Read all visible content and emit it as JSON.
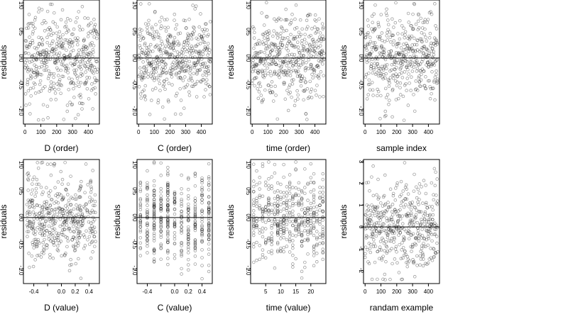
{
  "figure": {
    "ylabel": "residuals"
  },
  "chart_data": [
    {
      "type": "scatter",
      "xlabel": "D (order)",
      "ylabel": "residuals",
      "xlim": [
        -10,
        470
      ],
      "ylim": [
        -1.25,
        1.1
      ],
      "xticks": [
        "0",
        "100",
        "200",
        "300",
        "400"
      ],
      "xtick_values": [
        0,
        100,
        200,
        300,
        400
      ],
      "yticks": [
        "-1.0",
        "-0.5",
        "0.0",
        "0.5",
        "1.0"
      ],
      "ytick_values": [
        -1.0,
        -0.5,
        0.0,
        0.5,
        1.0
      ],
      "hline": 0,
      "n": 460,
      "x_kind": "index",
      "y_spread": 0.42
    },
    {
      "type": "scatter",
      "xlabel": "C (order)",
      "ylabel": "residuals",
      "xlim": [
        -10,
        470
      ],
      "ylim": [
        -1.25,
        1.1
      ],
      "xticks": [
        "0",
        "100",
        "200",
        "300",
        "400"
      ],
      "xtick_values": [
        0,
        100,
        200,
        300,
        400
      ],
      "yticks": [
        "-1.0",
        "-0.5",
        "0.0",
        "0.5",
        "1.0"
      ],
      "ytick_values": [
        -1.0,
        -0.5,
        0.0,
        0.5,
        1.0
      ],
      "hline": 0,
      "n": 460,
      "x_kind": "index",
      "y_spread": 0.42
    },
    {
      "type": "scatter",
      "xlabel": "time (order)",
      "ylabel": "residuals",
      "xlim": [
        -10,
        470
      ],
      "ylim": [
        -1.25,
        1.1
      ],
      "xticks": [
        "0",
        "100",
        "200",
        "300",
        "400"
      ],
      "xtick_values": [
        0,
        100,
        200,
        300,
        400
      ],
      "yticks": [
        "-1.0",
        "-0.5",
        "0.0",
        "0.5",
        "1.0"
      ],
      "ytick_values": [
        -1.0,
        -0.5,
        0.0,
        0.5,
        1.0
      ],
      "hline": 0,
      "n": 460,
      "x_kind": "index",
      "y_spread": 0.42
    },
    {
      "type": "scatter",
      "xlabel": "sample index",
      "ylabel": "residuals",
      "xlim": [
        -10,
        470
      ],
      "ylim": [
        -1.25,
        1.1
      ],
      "xticks": [
        "0",
        "100",
        "200",
        "300",
        "400"
      ],
      "xtick_values": [
        0,
        100,
        200,
        300,
        400
      ],
      "yticks": [
        "-1.0",
        "-0.5",
        "0.0",
        "0.5",
        "1.0"
      ],
      "ytick_values": [
        -1.0,
        -0.5,
        0.0,
        0.5,
        1.0
      ],
      "hline": 0,
      "n": 460,
      "x_kind": "index",
      "y_spread": 0.42
    },
    {
      "type": "scatter",
      "xlabel": "D (value)",
      "ylabel": "residuals",
      "xlim": [
        -0.55,
        0.55
      ],
      "ylim": [
        -1.25,
        1.1
      ],
      "xticks": [
        "-0.4",
        "0.0",
        "0.2",
        "0.4"
      ],
      "xtick_values": [
        -0.4,
        0.0,
        0.2,
        0.4
      ],
      "minor_xtick_values": [
        -0.2
      ],
      "yticks": [
        "-1.0",
        "-0.5",
        "0.0",
        "0.5",
        "1.0"
      ],
      "ytick_values": [
        -1.0,
        -0.5,
        0.0,
        0.5,
        1.0
      ],
      "hline": 0,
      "n": 460,
      "x_kind": "continuous",
      "y_spread": 0.42
    },
    {
      "type": "scatter",
      "xlabel": "C (value)",
      "ylabel": "residuals",
      "xlim": [
        -0.55,
        0.55
      ],
      "ylim": [
        -1.25,
        1.1
      ],
      "xticks": [
        "-0.4",
        "0.0",
        "0.2",
        "0.4"
      ],
      "xtick_values": [
        -0.4,
        0.0,
        0.2,
        0.4
      ],
      "minor_xtick_values": [
        -0.2
      ],
      "yticks": [
        "-1.0",
        "-0.5",
        "0.0",
        "0.5",
        "1.0"
      ],
      "ytick_values": [
        -1.0,
        -0.5,
        0.0,
        0.5,
        1.0
      ],
      "hline": 0,
      "n": 460,
      "x_kind": "discrete",
      "x_levels": [
        -0.5,
        -0.4,
        -0.3,
        -0.2,
        -0.1,
        0.0,
        0.1,
        0.2,
        0.3,
        0.4,
        0.5
      ],
      "y_spread": 0.42
    },
    {
      "type": "scatter",
      "xlabel": "time (value)",
      "ylabel": "residuals",
      "xlim": [
        0,
        25
      ],
      "ylim": [
        -1.25,
        1.1
      ],
      "xticks": [
        "5",
        "10",
        "15",
        "20"
      ],
      "xtick_values": [
        5,
        10,
        15,
        20
      ],
      "yticks": [
        "-1.0",
        "-0.5",
        "0.0",
        "0.5",
        "1.0"
      ],
      "ytick_values": [
        -1.0,
        -0.5,
        0.0,
        0.5,
        1.0
      ],
      "hline": 0,
      "n": 460,
      "x_kind": "discrete",
      "x_levels": [
        1,
        2,
        3,
        4,
        5,
        6,
        7,
        8,
        9,
        10,
        11,
        12,
        13,
        14,
        15,
        16,
        17,
        18,
        19,
        20,
        21,
        22,
        23,
        24
      ],
      "y_spread": 0.42
    },
    {
      "type": "scatter",
      "xlabel": "randam example",
      "ylabel": "residuals",
      "xlim": [
        -10,
        470
      ],
      "ylim": [
        -2.6,
        3.1
      ],
      "xticks": [
        "0",
        "100",
        "200",
        "300",
        "400"
      ],
      "xtick_values": [
        0,
        100,
        200,
        300,
        400
      ],
      "yticks": [
        "-2",
        "-1",
        "0",
        "1",
        "2",
        "3"
      ],
      "ytick_values": [
        -2,
        -1,
        0,
        1,
        2,
        3
      ],
      "hline": 0,
      "n": 460,
      "x_kind": "index",
      "y_spread": 1.0
    }
  ]
}
